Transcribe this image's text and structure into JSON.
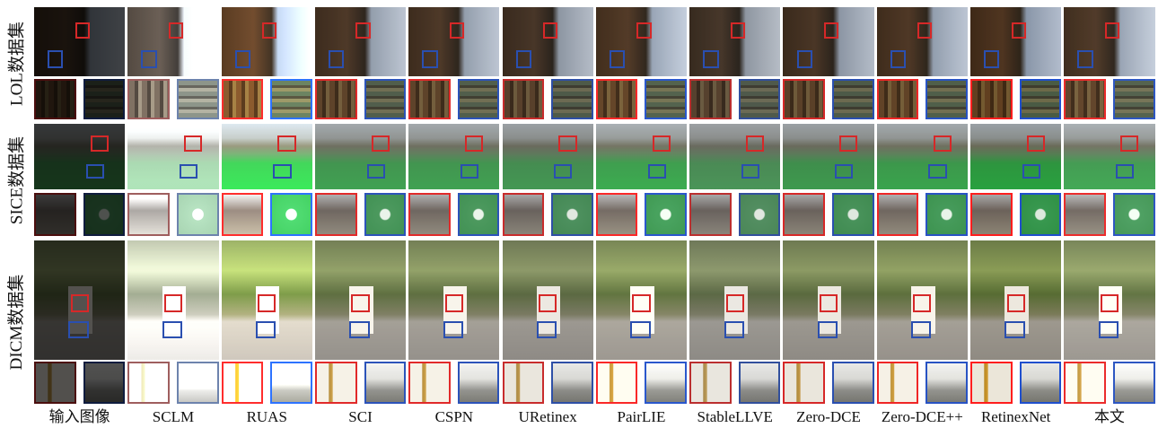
{
  "row_labels": [
    "LOL数据集",
    "SICE数据集",
    "DICM数据集"
  ],
  "column_labels": [
    "输入图像",
    "SCLM",
    "RUAS",
    "SCI",
    "CSPN",
    "URetinex",
    "PairLIE",
    "StableLLVE",
    "Zero-DCE",
    "Zero-DCE++",
    "RetinexNet",
    "本文"
  ]
}
